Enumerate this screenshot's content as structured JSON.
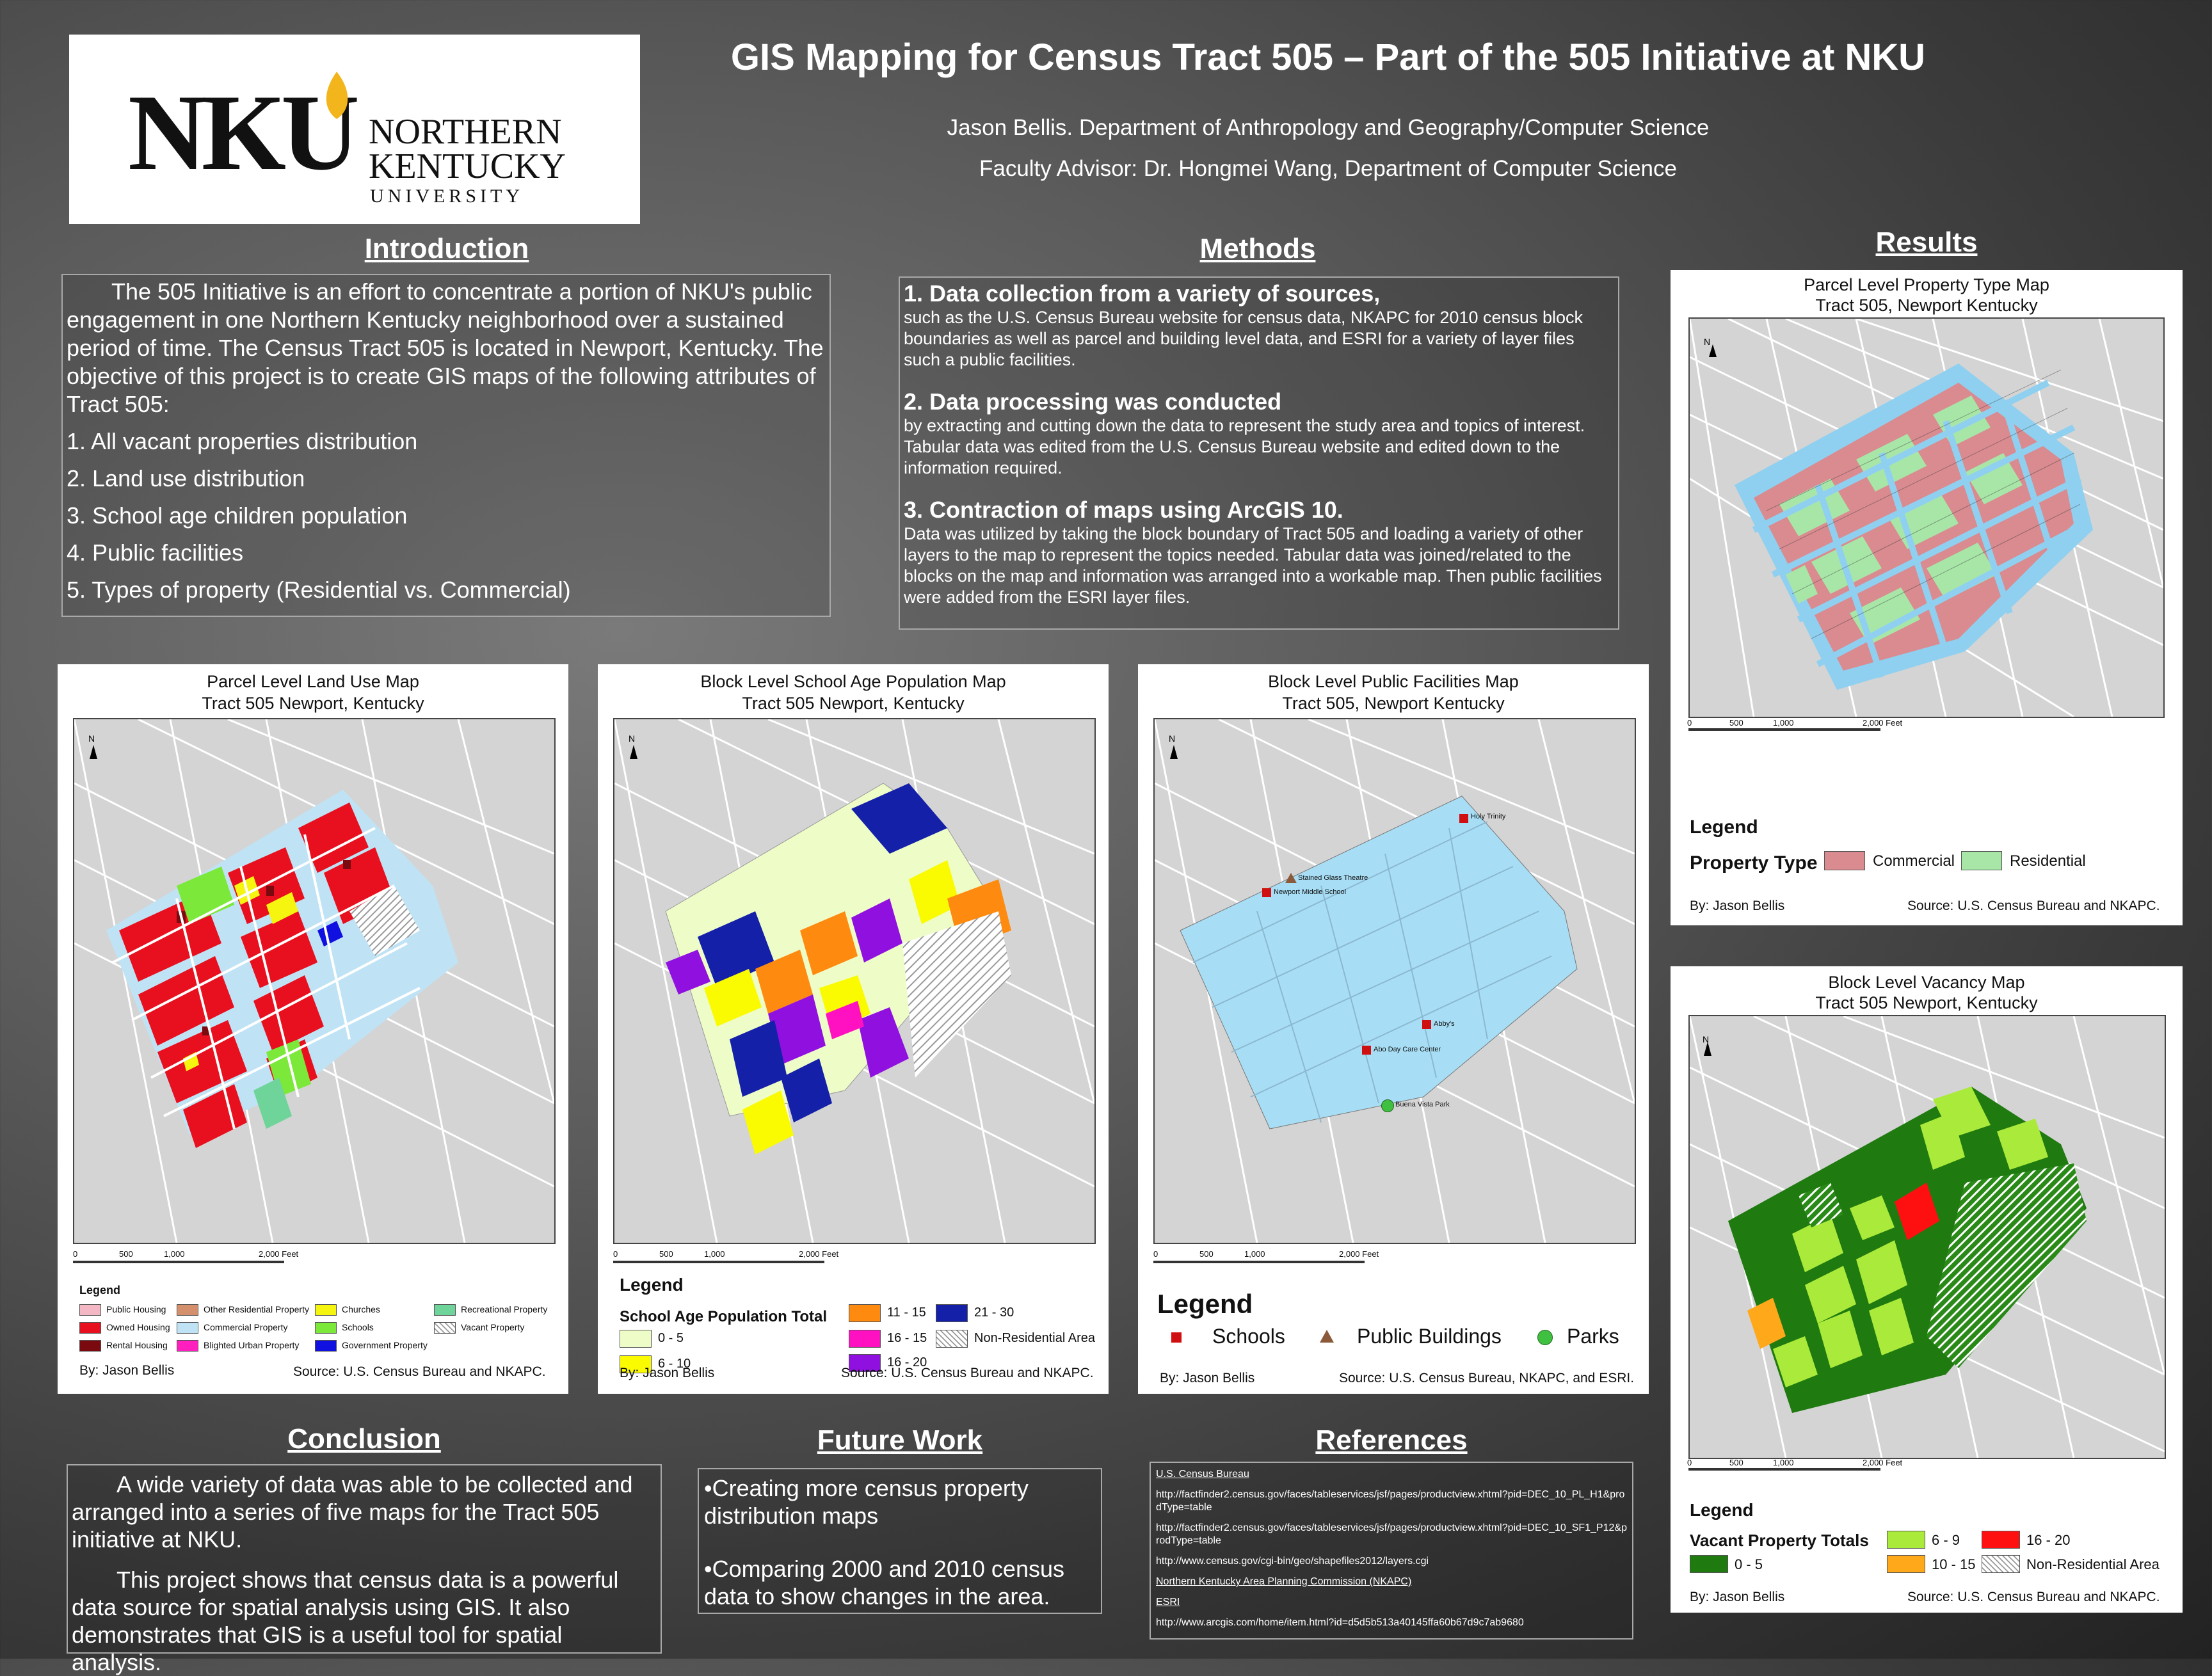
{
  "header": {
    "title": "GIS Mapping for Census Tract 505 – Part of the 505 Initiative at NKU",
    "author_line": "Jason Bellis. Department of Anthropology and Geography/Computer Science",
    "advisor_line": "Faculty Advisor: Dr. Hongmei Wang, Department of Computer Science",
    "logo": {
      "mark": "NKU",
      "line1": "NORTHERN",
      "line2": "KENTUCKY",
      "line3": "UNIVERSITY",
      "flame_color": "#f2b51c"
    }
  },
  "introduction": {
    "heading": "Introduction",
    "paragraph": "The 505 Initiative is an effort to concentrate a portion of NKU's public engagement in one Northern Kentucky neighborhood over a sustained period of time. The Census Tract 505 is located in Newport, Kentucky. The objective of this project  is to create GIS maps of the following attributes of Tract 505:",
    "items": [
      "1. All vacant properties distribution",
      "2. Land use distribution",
      "3. School age children population",
      "4. Public facilities",
      "5. Types of property (Residential vs. Commercial)"
    ]
  },
  "methods": {
    "heading": "Methods",
    "steps": [
      {
        "title": "1. Data collection from a variety of sources,",
        "text": "such as the U.S. Census Bureau website for census data, NKAPC for 2010 census block boundaries as well as parcel and building level data, and ESRI for a variety of layer files such a public facilities."
      },
      {
        "title": "2. Data processing was conducted",
        "text": "by extracting and cutting down the data to represent the study area and topics of interest. Tabular data was edited from the U.S. Census Bureau website and edited down to the information required."
      },
      {
        "title": "3. Contraction of maps using ArcGIS 10.",
        "text": "Data was utilized by taking the block boundary of Tract 505 and loading a variety of other layers to the map to represent the topics needed. Tabular data was joined/related to the blocks on the map and information was arranged into a workable map. Then  public facilities were added from the ESRI layer files."
      }
    ]
  },
  "results": {
    "heading": "Results"
  },
  "scale": {
    "t0": "0",
    "t1": "500",
    "t2": "1,000",
    "t3": "2,000 Feet",
    "north": "N"
  },
  "maps": {
    "property": {
      "title1": "Parcel Level Property Type Map",
      "title2": "Tract 505, Newport Kentucky",
      "legend": "Legend",
      "type_label": "Property Type",
      "items": [
        {
          "label": "Commercial",
          "color": "#d98b90"
        },
        {
          "label": "Residential",
          "color": "#a8e6a8"
        }
      ],
      "by": "By: Jason Bellis",
      "source": "Source: U.S. Census Bureau and NKAPC."
    },
    "landuse": {
      "title1": "Parcel Level Land Use Map",
      "title2": "Tract 505 Newport, Kentucky",
      "legend": "Legend",
      "items": [
        {
          "label": "Public Housing",
          "color": "#f4b8c4"
        },
        {
          "label": "Owned Housing",
          "color": "#e8101e"
        },
        {
          "label": "Rental Housing",
          "color": "#7a0a10"
        },
        {
          "label": "Other Residential Property",
          "color": "#d4906c"
        },
        {
          "label": "Commercial Property",
          "color": "#bfe3f5"
        },
        {
          "label": "Blighted Urban Property",
          "color": "#ff1fbf"
        },
        {
          "label": "Churches",
          "color": "#f5f510"
        },
        {
          "label": "Schools",
          "color": "#7ce83a"
        },
        {
          "label": "Government Property",
          "color": "#1010e0"
        },
        {
          "label": "Recreational Property",
          "color": "#6ed49a"
        },
        {
          "label": "Vacant Property",
          "color": "hatch"
        }
      ],
      "by": "By: Jason Bellis",
      "source": "Source: U.S. Census Bureau and NKAPC."
    },
    "school": {
      "title1": "Block Level School Age Population Map",
      "title2": "Tract 505 Newport, Kentucky",
      "legend": "Legend",
      "type_label": "School Age Population Total",
      "items": [
        {
          "label": "0 - 5",
          "color": "#eefcc8"
        },
        {
          "label": "6 - 10",
          "color": "#fafa00"
        },
        {
          "label": "11 - 15",
          "color": "#ff8a10"
        },
        {
          "label": "16 - 15",
          "color": "#ff10c0"
        },
        {
          "label": "16 - 20",
          "color": "#9010e0"
        },
        {
          "label": "21 - 30",
          "color": "#1420a8"
        },
        {
          "label": "Non-Residential Area",
          "color": "hatch"
        }
      ],
      "by": "By: Jason Bellis",
      "source": "Source: U.S. Census Bureau and NKAPC."
    },
    "facilities": {
      "title1": "Block Level Public Facilities Map",
      "title2": "Tract 505, Newport Kentucky",
      "legend": "Legend",
      "items": [
        {
          "label": "Schools",
          "icon": "school-icon",
          "color": "#d01010"
        },
        {
          "label": "Public Buildings",
          "icon": "public-building-icon",
          "color": "#8a5a3a"
        },
        {
          "label": "Parks",
          "icon": "park-icon",
          "color": "#40c040"
        }
      ],
      "points": {
        "p1": "Holy Trinity",
        "p2": "Stained Glass Theatre",
        "p3": "Newport Middle School",
        "p4": "Abby's",
        "p5": "Abo Day Care Center",
        "p6": "Buena Vista Park"
      },
      "by": "By: Jason Bellis",
      "source": "Source: U.S. Census Bureau, NKAPC, and ESRI."
    },
    "vacancy": {
      "title1": "Block Level Vacancy Map",
      "title2": "Tract 505 Newport, Kentucky",
      "legend": "Legend",
      "type_label": "Vacant Property Totals",
      "items": [
        {
          "label": "0 - 5",
          "color": "#1f7a10"
        },
        {
          "label": "6 - 9",
          "color": "#aaea3a"
        },
        {
          "label": "10 - 15",
          "color": "#ffa81a"
        },
        {
          "label": "16 - 20",
          "color": "#ff1010"
        },
        {
          "label": "Non-Residential Area",
          "color": "hatch"
        }
      ],
      "by": "By: Jason Bellis",
      "source": "Source: U.S. Census Bureau and NKAPC."
    }
  },
  "conclusion": {
    "heading": "Conclusion",
    "p1": "A wide variety of data was able to be collected and arranged into a series of five maps for the Tract 505 initiative at NKU.",
    "p2": "This project shows that census data is a powerful data source for spatial analysis  using GIS. It also demonstrates that GIS is a useful tool for spatial analysis."
  },
  "future_work": {
    "heading": "Future Work",
    "items": [
      "•Creating more census property distribution maps",
      "•Comparing 2000 and 2010 census data to show changes in the area."
    ]
  },
  "references": {
    "heading": "References",
    "items": [
      {
        "text": "U.S. Census Bureau",
        "underline": true
      },
      {
        "text": "http://factfinder2.census.gov/faces/tableservices/jsf/pages/productview.xhtml?pid=DEC_10_PL_H1&prodType=table",
        "underline": false
      },
      {
        "text": "http://factfinder2.census.gov/faces/tableservices/jsf/pages/productview.xhtml?pid=DEC_10_SF1_P12&prodType=table",
        "underline": false
      },
      {
        "text": "http://www.census.gov/cgi-bin/geo/shapefiles2012/layers.cgi",
        "underline": false
      },
      {
        "text": "Northern Kentucky Area Planning Commission (NKAPC)",
        "underline": true
      },
      {
        "text": "ESRI",
        "underline": true
      },
      {
        "text": "http://www.arcgis.com/home/item.html?id=d5d5b513a40145ffa60b67d9c7ab9680",
        "underline": false
      }
    ]
  }
}
